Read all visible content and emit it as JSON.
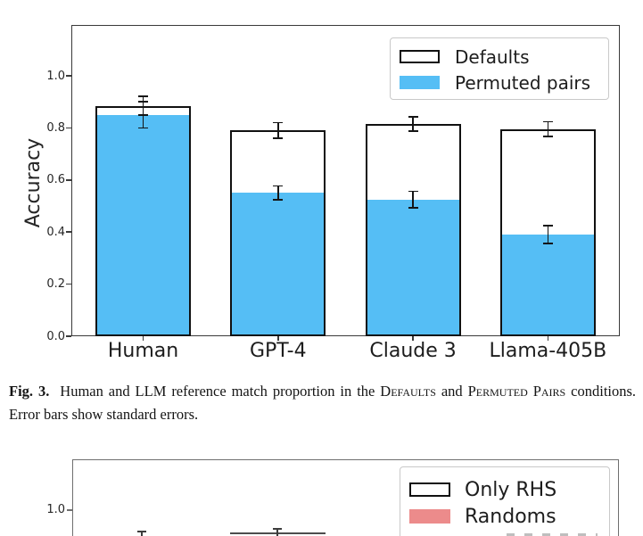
{
  "figure3": {
    "ylabel": "Accuracy",
    "ytick_labels": [
      "0.0",
      "0.2",
      "0.4",
      "0.6",
      "0.8",
      "1.0"
    ],
    "categories": [
      "Human",
      "GPT-4",
      "Claude 3",
      "Llama-405B"
    ],
    "legend": {
      "defaults_label": "Defaults",
      "permuted_label": "Permuted pairs"
    }
  },
  "caption": {
    "fig_label": "Fig. 3.",
    "segment1": "Human and LLM reference match proportion in the",
    "smallcaps1": "Defaults",
    "segment2": "and",
    "smallcaps2": "Permuted Pairs",
    "segment3": "conditions. Error bars show standard errors."
  },
  "figure4_partial": {
    "visible_ytick": "1.0",
    "legend": {
      "only_rhs_label": "Only RHS",
      "randoms_label": "Randoms"
    }
  },
  "colors": {
    "permuted_blue": "#55BEF5",
    "randoms_salmon": "#EC8B8B",
    "bar_edge": "#111111",
    "axis_spine": "#3a3a3a"
  },
  "chart_data": [
    {
      "type": "bar",
      "title": "",
      "categories": [
        "Human",
        "GPT-4",
        "Claude 3",
        "Llama-405B"
      ],
      "series": [
        {
          "name": "Defaults",
          "values": [
            0.885,
            0.79,
            0.815,
            0.795
          ],
          "errors": [
            0.036,
            0.03,
            0.027,
            0.028
          ]
        },
        {
          "name": "Permuted pairs",
          "values": [
            0.85,
            0.55,
            0.525,
            0.39
          ],
          "errors": [
            0.05,
            0.027,
            0.032,
            0.034
          ]
        }
      ],
      "xlabel": "",
      "ylabel": "Accuracy",
      "ylim": [
        0,
        1.2
      ],
      "yticks": [
        0.0,
        0.2,
        0.4,
        0.6,
        0.8,
        1.0
      ],
      "legend_position": "upper right",
      "grid": false,
      "bar_style": "overlaid (Permuted pairs drawn in front of Defaults)",
      "error_bars": "standard errors"
    },
    {
      "type": "bar",
      "partial": true,
      "legend_entries": [
        "Only RHS",
        "Randoms"
      ],
      "visible_yticks": [
        "1.0"
      ]
    }
  ]
}
